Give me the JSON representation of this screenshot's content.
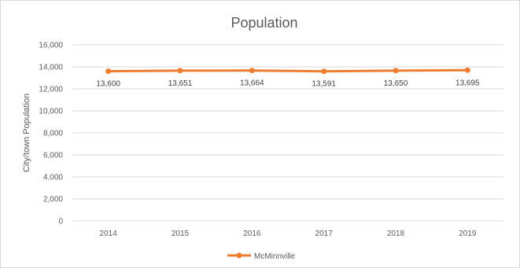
{
  "chart_data": {
    "type": "line",
    "title": "Population",
    "xlabel": "",
    "ylabel": "City/town Population",
    "categories": [
      "2014",
      "2015",
      "2016",
      "2017",
      "2018",
      "2019"
    ],
    "series": [
      {
        "name": "McMinnville",
        "values": [
          13600,
          13651,
          13664,
          13591,
          13650,
          13695
        ],
        "labels": [
          "13,600",
          "13,651",
          "13,664",
          "13,591",
          "13,650",
          "13,695"
        ],
        "color": "#ed7d31"
      }
    ],
    "ylim": [
      0,
      16000
    ],
    "yticks": [
      0,
      2000,
      4000,
      6000,
      8000,
      10000,
      12000,
      14000,
      16000
    ],
    "ytick_labels": [
      "0",
      "2,000",
      "4,000",
      "6,000",
      "8,000",
      "10,000",
      "12,000",
      "14,000",
      "16,000"
    ],
    "grid": true,
    "legend_position": "bottom",
    "colors": {
      "series": "#ed7d31",
      "grid": "#d9d9d9",
      "text": "#595959"
    }
  }
}
